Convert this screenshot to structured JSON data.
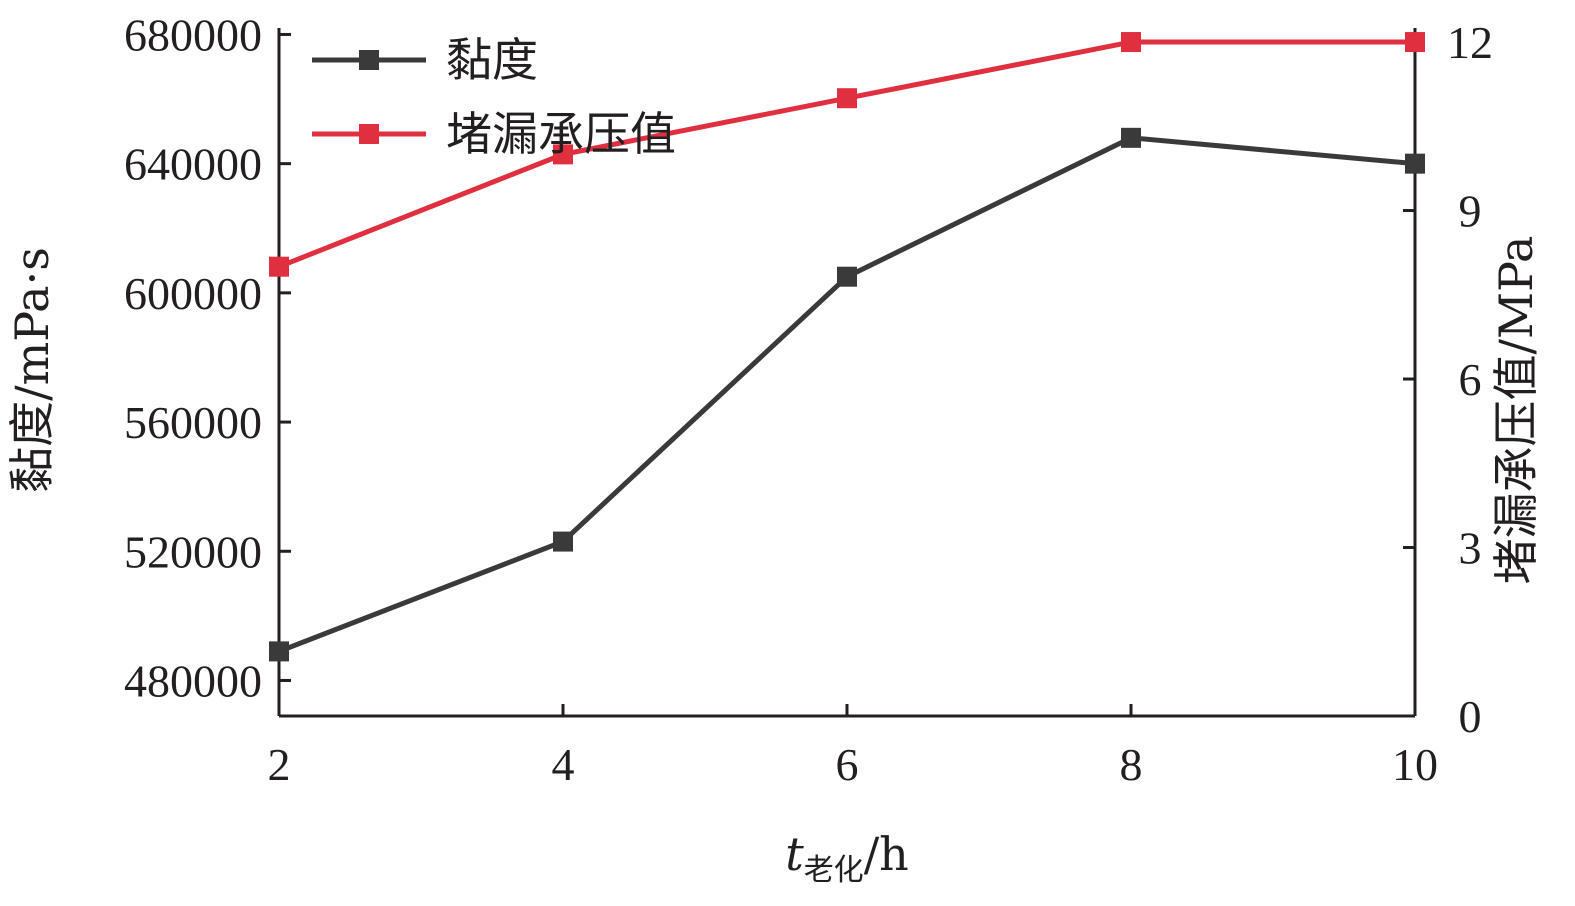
{
  "chart_data": {
    "type": "line",
    "x": [
      2,
      4,
      6,
      8,
      10
    ],
    "x_ticks": [
      "2",
      "4",
      "6",
      "8",
      "10"
    ],
    "xlim": [
      2,
      10
    ],
    "xlabel": {
      "var": "t",
      "sub": "老化",
      "unit": "/h"
    },
    "y_left": {
      "label": "黏度/mPa·s",
      "ticks": [
        "480000",
        "520000",
        "560000",
        "600000",
        "640000",
        "680000"
      ],
      "tick_values": [
        480000,
        520000,
        560000,
        600000,
        640000,
        680000
      ],
      "range": [
        469000,
        682000
      ]
    },
    "y_right": {
      "label": "堵漏承压值/MPa",
      "ticks": [
        "0",
        "3",
        "6",
        "9",
        "12"
      ],
      "tick_values": [
        0,
        3,
        6,
        9,
        12
      ],
      "range": [
        0,
        12.25
      ]
    },
    "series": [
      {
        "name": "黏度",
        "axis": "left",
        "color": "#3a3a3a",
        "values": [
          489000,
          523000,
          605000,
          648000,
          640000
        ]
      },
      {
        "name": "堵漏承压值",
        "axis": "right",
        "color": "#e03040",
        "values": [
          8.0,
          10.0,
          11.0,
          12.0,
          12.0
        ]
      }
    ],
    "legend_position": "top-left",
    "grid": false
  }
}
